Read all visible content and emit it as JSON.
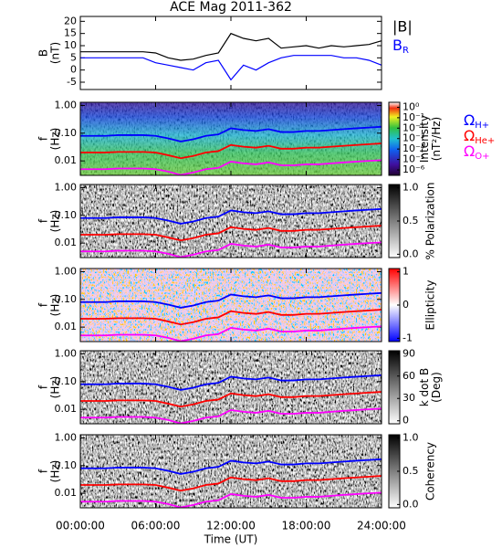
{
  "chart_data": [
    {
      "type": "line",
      "title": "ACE Mag 2011-362",
      "ylabel": [
        "B",
        "(nT)"
      ],
      "x": [
        0,
        1,
        2,
        3,
        4,
        5,
        6,
        7,
        8,
        9,
        10,
        11,
        12,
        13,
        14,
        15,
        16,
        17,
        18,
        19,
        20,
        21,
        22,
        23,
        24
      ],
      "xlim": [
        0,
        24
      ],
      "xticks": [
        0,
        6,
        12,
        18,
        24
      ],
      "ylim": [
        -8,
        22
      ],
      "yticks": [
        -5,
        0,
        5,
        10,
        15,
        20
      ],
      "series": [
        {
          "name": "|B|",
          "color": "#000000",
          "values": [
            7.5,
            7.5,
            7.5,
            7.5,
            7.5,
            7.5,
            7,
            5,
            4,
            4.5,
            6,
            7,
            15,
            13,
            12,
            13,
            9,
            9.5,
            10,
            9,
            10,
            9.5,
            10,
            10.5,
            12
          ]
        },
        {
          "name": "BR",
          "color": "#0000ff",
          "values": [
            5,
            5,
            5,
            5,
            5,
            5,
            3,
            2,
            1,
            0,
            3,
            4,
            -4,
            2,
            0,
            3,
            5,
            6,
            6,
            6,
            6,
            5,
            5,
            4,
            2
          ]
        }
      ]
    },
    {
      "type": "spectrogram",
      "ylabel": [
        "f",
        "(Hz)"
      ],
      "colormap": "rainbow",
      "colorbar_label": [
        "Intensity",
        "(nT²/Hz)"
      ],
      "x": [
        0,
        1,
        2,
        3,
        4,
        5,
        6,
        7,
        8,
        9,
        10,
        11,
        12,
        13,
        14,
        15,
        16,
        17,
        18,
        19,
        20,
        21,
        22,
        23,
        24
      ],
      "xlim": [
        0,
        24
      ],
      "xticks": [
        0,
        6,
        12,
        18,
        24
      ],
      "ylog": true,
      "ylim": [
        0.003,
        1.3
      ],
      "yticks": [
        {
          "value": 0.01,
          "label": "0.01"
        },
        {
          "value": 0.1,
          "label": "0.10"
        },
        {
          "value": 1,
          "label": "1.00"
        }
      ],
      "clog": true,
      "clim": [
        3e-07,
        3
      ],
      "cticks": [
        {
          "value": 1,
          "label": "10⁰"
        },
        {
          "value": 0.1,
          "label": "10⁻¹"
        },
        {
          "value": 0.01,
          "label": "10⁻²"
        },
        {
          "value": 0.001,
          "label": "10⁻³"
        },
        {
          "value": 0.0001,
          "label": "10⁻⁴"
        },
        {
          "value": 1e-05,
          "label": "10⁻⁵"
        },
        {
          "value": 1e-06,
          "label": "10⁻⁶"
        }
      ],
      "series": [
        {
          "name": "ΩH+",
          "color": "#0000ff",
          "values": [
            0.08,
            0.08,
            0.08,
            0.085,
            0.085,
            0.085,
            0.08,
            0.065,
            0.05,
            0.06,
            0.08,
            0.09,
            0.15,
            0.13,
            0.12,
            0.14,
            0.11,
            0.11,
            0.12,
            0.12,
            0.13,
            0.14,
            0.15,
            0.16,
            0.17
          ]
        },
        {
          "name": "ΩHe+",
          "color": "#ff0000",
          "values": [
            0.02,
            0.02,
            0.02,
            0.021,
            0.021,
            0.021,
            0.02,
            0.016,
            0.0125,
            0.015,
            0.02,
            0.0225,
            0.0375,
            0.0325,
            0.03,
            0.035,
            0.0275,
            0.0275,
            0.03,
            0.03,
            0.0325,
            0.035,
            0.0375,
            0.04,
            0.0425
          ]
        },
        {
          "name": "ΩO+",
          "color": "#ff00ff",
          "values": [
            0.005,
            0.005,
            0.005,
            0.0053,
            0.0053,
            0.0053,
            0.005,
            0.0041,
            0.0031,
            0.0038,
            0.005,
            0.0056,
            0.0094,
            0.0081,
            0.0075,
            0.0088,
            0.0069,
            0.0069,
            0.0075,
            0.0075,
            0.0081,
            0.0088,
            0.0094,
            0.01,
            0.0106
          ]
        }
      ]
    },
    {
      "type": "spectrogram",
      "ylabel": [
        "f",
        "(Hz)"
      ],
      "colormap": "gray",
      "colorbar_label": [
        "% Polarization"
      ],
      "x": [
        0,
        1,
        2,
        3,
        4,
        5,
        6,
        7,
        8,
        9,
        10,
        11,
        12,
        13,
        14,
        15,
        16,
        17,
        18,
        19,
        20,
        21,
        22,
        23,
        24
      ],
      "xlim": [
        0,
        24
      ],
      "xticks": [
        0,
        6,
        12,
        18,
        24
      ],
      "ylog": true,
      "ylim": [
        0.003,
        1.3
      ],
      "yticks": [
        {
          "value": 0.01,
          "label": "0.01"
        },
        {
          "value": 0.1,
          "label": "0.10"
        },
        {
          "value": 1,
          "label": "1.00"
        }
      ],
      "clim": [
        -0.05,
        1.05
      ],
      "cticks": [
        {
          "value": 0,
          "label": "0.0"
        },
        {
          "value": 0.5,
          "label": "0.5"
        },
        {
          "value": 1,
          "label": "1.0"
        }
      ],
      "series": [
        {
          "color": "#0000ff",
          "values": [
            0.08,
            0.08,
            0.08,
            0.085,
            0.085,
            0.085,
            0.08,
            0.065,
            0.05,
            0.06,
            0.08,
            0.09,
            0.15,
            0.13,
            0.12,
            0.14,
            0.11,
            0.11,
            0.12,
            0.12,
            0.13,
            0.14,
            0.15,
            0.16,
            0.17
          ]
        },
        {
          "color": "#ff0000",
          "values": [
            0.02,
            0.02,
            0.02,
            0.021,
            0.021,
            0.021,
            0.02,
            0.016,
            0.0125,
            0.015,
            0.02,
            0.0225,
            0.0375,
            0.0325,
            0.03,
            0.035,
            0.0275,
            0.0275,
            0.03,
            0.03,
            0.0325,
            0.035,
            0.0375,
            0.04,
            0.0425
          ]
        },
        {
          "color": "#ff00ff",
          "values": [
            0.005,
            0.005,
            0.005,
            0.0053,
            0.0053,
            0.0053,
            0.005,
            0.0041,
            0.0031,
            0.0038,
            0.005,
            0.0056,
            0.0094,
            0.0081,
            0.0075,
            0.0088,
            0.0069,
            0.0069,
            0.0075,
            0.0075,
            0.0081,
            0.0088,
            0.0094,
            0.01,
            0.0106
          ]
        }
      ]
    },
    {
      "type": "spectrogram",
      "ylabel": [
        "f",
        "(Hz)"
      ],
      "colormap": "bwr",
      "colorbar_label": [
        "Ellipticity"
      ],
      "x": [
        0,
        1,
        2,
        3,
        4,
        5,
        6,
        7,
        8,
        9,
        10,
        11,
        12,
        13,
        14,
        15,
        16,
        17,
        18,
        19,
        20,
        21,
        22,
        23,
        24
      ],
      "xlim": [
        0,
        24
      ],
      "xticks": [
        0,
        6,
        12,
        18,
        24
      ],
      "ylog": true,
      "ylim": [
        0.003,
        1.3
      ],
      "yticks": [
        {
          "value": 0.01,
          "label": "0.01"
        },
        {
          "value": 0.1,
          "label": "0.10"
        },
        {
          "value": 1,
          "label": "1.00"
        }
      ],
      "clim": [
        -1.1,
        1.1
      ],
      "cticks": [
        -1,
        0,
        1
      ],
      "series": [
        {
          "color": "#0000ff",
          "values": [
            0.08,
            0.08,
            0.08,
            0.085,
            0.085,
            0.085,
            0.08,
            0.065,
            0.05,
            0.06,
            0.08,
            0.09,
            0.15,
            0.13,
            0.12,
            0.14,
            0.11,
            0.11,
            0.12,
            0.12,
            0.13,
            0.14,
            0.15,
            0.16,
            0.17
          ]
        },
        {
          "color": "#ff0000",
          "values": [
            0.02,
            0.02,
            0.02,
            0.021,
            0.021,
            0.021,
            0.02,
            0.016,
            0.0125,
            0.015,
            0.02,
            0.0225,
            0.0375,
            0.0325,
            0.03,
            0.035,
            0.0275,
            0.0275,
            0.03,
            0.03,
            0.0325,
            0.035,
            0.0375,
            0.04,
            0.0425
          ]
        },
        {
          "color": "#ff00ff",
          "values": [
            0.005,
            0.005,
            0.005,
            0.0053,
            0.0053,
            0.0053,
            0.005,
            0.0041,
            0.0031,
            0.0038,
            0.005,
            0.0056,
            0.0094,
            0.0081,
            0.0075,
            0.0088,
            0.0069,
            0.0069,
            0.0075,
            0.0075,
            0.0081,
            0.0088,
            0.0094,
            0.01,
            0.0106
          ]
        }
      ]
    },
    {
      "type": "spectrogram",
      "ylabel": [
        "f",
        "(Hz)"
      ],
      "colormap": "gray",
      "colorbar_label": [
        "k dot B",
        "(Deg)"
      ],
      "x": [
        0,
        1,
        2,
        3,
        4,
        5,
        6,
        7,
        8,
        9,
        10,
        11,
        12,
        13,
        14,
        15,
        16,
        17,
        18,
        19,
        20,
        21,
        22,
        23,
        24
      ],
      "xlim": [
        0,
        24
      ],
      "xticks": [
        0,
        6,
        12,
        18,
        24
      ],
      "ylog": true,
      "ylim": [
        0.003,
        1.3
      ],
      "yticks": [
        {
          "value": 0.01,
          "label": "0.01"
        },
        {
          "value": 0.1,
          "label": "0.10"
        },
        {
          "value": 1,
          "label": "1.00"
        }
      ],
      "clim": [
        -4,
        94
      ],
      "cticks": [
        0,
        30,
        60,
        90
      ],
      "series": [
        {
          "color": "#0000ff",
          "values": [
            0.08,
            0.08,
            0.08,
            0.085,
            0.085,
            0.085,
            0.08,
            0.065,
            0.05,
            0.06,
            0.08,
            0.09,
            0.15,
            0.13,
            0.12,
            0.14,
            0.11,
            0.11,
            0.12,
            0.12,
            0.13,
            0.14,
            0.15,
            0.16,
            0.17
          ]
        },
        {
          "color": "#ff0000",
          "values": [
            0.02,
            0.02,
            0.02,
            0.021,
            0.021,
            0.021,
            0.02,
            0.016,
            0.0125,
            0.015,
            0.02,
            0.0225,
            0.0375,
            0.0325,
            0.03,
            0.035,
            0.0275,
            0.0275,
            0.03,
            0.03,
            0.0325,
            0.035,
            0.0375,
            0.04,
            0.0425
          ]
        },
        {
          "color": "#ff00ff",
          "values": [
            0.005,
            0.005,
            0.005,
            0.0053,
            0.0053,
            0.0053,
            0.005,
            0.0041,
            0.0031,
            0.0038,
            0.005,
            0.0056,
            0.0094,
            0.0081,
            0.0075,
            0.0088,
            0.0069,
            0.0069,
            0.0075,
            0.0075,
            0.0081,
            0.0088,
            0.0094,
            0.01,
            0.0106
          ]
        }
      ]
    },
    {
      "type": "spectrogram",
      "ylabel": [
        "f",
        "(Hz)"
      ],
      "colormap": "gray",
      "colorbar_label": [
        "Coherency"
      ],
      "xlabel": "Time (UT)",
      "x": [
        0,
        1,
        2,
        3,
        4,
        5,
        6,
        7,
        8,
        9,
        10,
        11,
        12,
        13,
        14,
        15,
        16,
        17,
        18,
        19,
        20,
        21,
        22,
        23,
        24
      ],
      "xlim": [
        0,
        24
      ],
      "xticks": [
        {
          "value": 0,
          "label": "00:00:00"
        },
        {
          "value": 6,
          "label": "06:00:00"
        },
        {
          "value": 12,
          "label": "12:00:00"
        },
        {
          "value": 18,
          "label": "18:00:00"
        },
        {
          "value": 24,
          "label": "24:00:00"
        }
      ],
      "ylog": true,
      "ylim": [
        0.003,
        1.3
      ],
      "yticks": [
        {
          "value": 0.01,
          "label": "0.01"
        },
        {
          "value": 0.1,
          "label": "0.10"
        },
        {
          "value": 1,
          "label": "1.00"
        }
      ],
      "clim": [
        -0.05,
        1.05
      ],
      "cticks": [
        {
          "value": 0,
          "label": "0.0"
        },
        {
          "value": 0.5,
          "label": "0.5"
        },
        {
          "value": 1,
          "label": "1.0"
        }
      ],
      "series": [
        {
          "color": "#0000ff",
          "values": [
            0.08,
            0.08,
            0.08,
            0.085,
            0.085,
            0.085,
            0.08,
            0.065,
            0.05,
            0.06,
            0.08,
            0.09,
            0.15,
            0.13,
            0.12,
            0.14,
            0.11,
            0.11,
            0.12,
            0.12,
            0.13,
            0.14,
            0.15,
            0.16,
            0.17
          ]
        },
        {
          "color": "#ff0000",
          "values": [
            0.02,
            0.02,
            0.02,
            0.021,
            0.021,
            0.021,
            0.02,
            0.016,
            0.0125,
            0.015,
            0.02,
            0.0225,
            0.0375,
            0.0325,
            0.03,
            0.035,
            0.0275,
            0.0275,
            0.03,
            0.03,
            0.0325,
            0.035,
            0.0375,
            0.04,
            0.0425
          ]
        },
        {
          "color": "#ff00ff",
          "values": [
            0.005,
            0.005,
            0.005,
            0.0053,
            0.0053,
            0.0053,
            0.005,
            0.0041,
            0.0031,
            0.0038,
            0.005,
            0.0056,
            0.0094,
            0.0081,
            0.0075,
            0.0088,
            0.0069,
            0.0069,
            0.0075,
            0.0075,
            0.0081,
            0.0088,
            0.0094,
            0.01,
            0.0106
          ]
        }
      ]
    }
  ]
}
